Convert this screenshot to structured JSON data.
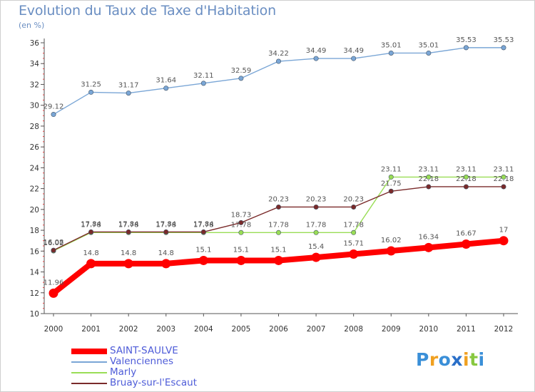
{
  "chart_data": {
    "type": "line",
    "title": "Evolution du Taux de Taxe d'Habitation",
    "unit": "(en %)",
    "x": [
      "2000",
      "2001",
      "2002",
      "2003",
      "2004",
      "2005",
      "2006",
      "2007",
      "2008",
      "2009",
      "2010",
      "2011",
      "2012"
    ],
    "ylim": [
      10,
      36
    ],
    "yticks": [
      10,
      12,
      14,
      16,
      18,
      20,
      22,
      24,
      26,
      28,
      30,
      32,
      34,
      36
    ],
    "grid": false,
    "legend_position": "bottom-left",
    "series": [
      {
        "name": "SAINT-SAULVE",
        "color": "#ff0000",
        "values": [
          11.96,
          14.8,
          14.8,
          14.8,
          15.1,
          15.1,
          15.1,
          15.4,
          15.71,
          16.02,
          16.34,
          16.67,
          17
        ],
        "labels": [
          "11.96",
          "14.8",
          "14.8",
          "14.8",
          "15.1",
          "15.1",
          "15.1",
          "15.4",
          "15.71",
          "16.02",
          "16.34",
          "16.67",
          "17"
        ]
      },
      {
        "name": "Valenciennes",
        "color": "#7aa6d6",
        "values": [
          29.12,
          31.25,
          31.17,
          31.64,
          32.11,
          32.59,
          34.22,
          34.49,
          34.49,
          35.01,
          35.01,
          35.53,
          35.53
        ],
        "labels": [
          "29.12",
          "31.25",
          "31.17",
          "31.64",
          "32.11",
          "32.59",
          "34.22",
          "34.49",
          "34.49",
          "35.01",
          "35.01",
          "35.53",
          "35.53"
        ]
      },
      {
        "name": "Marly",
        "color": "#99dd55",
        "values": [
          16.02,
          17.78,
          17.78,
          17.78,
          17.78,
          17.78,
          17.78,
          17.78,
          17.78,
          23.11,
          23.11,
          23.11,
          23.11
        ],
        "labels": [
          "16.02",
          "17.78",
          "17.78",
          "17.78",
          "17.78",
          "17.78",
          "17.78",
          "17.78",
          "17.78",
          "23.11",
          "23.11",
          "23.11",
          "23.11"
        ]
      },
      {
        "name": "Bruay-sur-l'Escaut",
        "color": "#7a2a2a",
        "values": [
          16.08,
          17.84,
          17.84,
          17.84,
          17.84,
          18.73,
          20.23,
          20.23,
          20.23,
          21.75,
          22.18,
          22.18,
          22.18
        ],
        "labels": [
          "16.08",
          "17.84",
          "17.84",
          "17.84",
          "17.84",
          "18.73",
          "20.23",
          "20.23",
          "20.23",
          "21.75",
          "22.18",
          "22.18",
          "22.18"
        ]
      }
    ]
  },
  "brand": {
    "logo_letters": [
      "P",
      "r",
      "o",
      "x",
      "i",
      "t",
      "i"
    ],
    "logo_colors": [
      "#3a8fd8",
      "#f0a020",
      "#3a8fd8",
      "#2a6fc8",
      "#f0a020",
      "#88c840",
      "#3a8fd8"
    ]
  }
}
